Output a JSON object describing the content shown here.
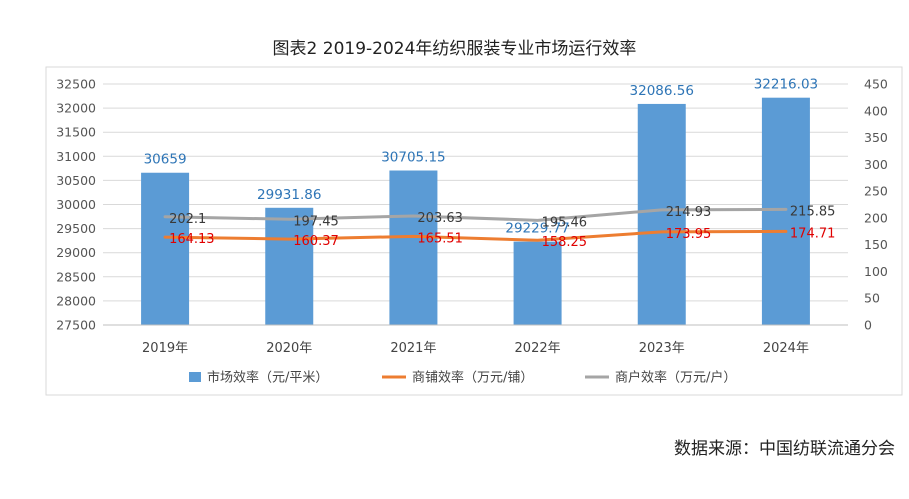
{
  "title": "图表2 2019-2024年纺织服装专业市场运行效率",
  "source": "数据来源：中国纺联流通分会",
  "chart_data": {
    "type": "bar",
    "categories": [
      "2019年",
      "2020年",
      "2021年",
      "2022年",
      "2023年",
      "2024年"
    ],
    "series": [
      {
        "name": "市场效率（元/平米）",
        "type": "bar",
        "axis": "left",
        "values": [
          30659,
          29931.86,
          30705.15,
          29229.77,
          32086.56,
          32216.03
        ],
        "labels": [
          "30659",
          "29931.86",
          "30705.15",
          "29229.77",
          "32086.56",
          "32216.03"
        ],
        "color": "#5b9bd5"
      },
      {
        "name": "商铺效率（万元/铺）",
        "type": "line",
        "axis": "right",
        "values": [
          164.13,
          160.37,
          165.51,
          158.25,
          173.95,
          174.71
        ],
        "labels": [
          "164.13",
          "160.37",
          "165.51",
          "158.25",
          "173.95",
          "174.71"
        ],
        "color": "#ed7d31"
      },
      {
        "name": "商户效率（万元/户）",
        "type": "line",
        "axis": "right",
        "values": [
          202.1,
          197.45,
          203.63,
          195.46,
          214.93,
          215.85
        ],
        "labels": [
          "202.1",
          "197.45",
          "203.63",
          "195.46",
          "214.93",
          "215.85"
        ],
        "color": "#a5a5a5"
      }
    ],
    "y_left": {
      "min": 27500,
      "max": 32500,
      "ticks": [
        "27500",
        "28000",
        "28500",
        "29000",
        "29500",
        "30000",
        "30500",
        "31000",
        "31500",
        "32000",
        "32500"
      ]
    },
    "y_right": {
      "min": 0,
      "max": 450,
      "ticks": [
        "0",
        "50",
        "100",
        "150",
        "200",
        "250",
        "300",
        "350",
        "400",
        "450"
      ]
    },
    "grid": true,
    "legend_position": "bottom"
  }
}
